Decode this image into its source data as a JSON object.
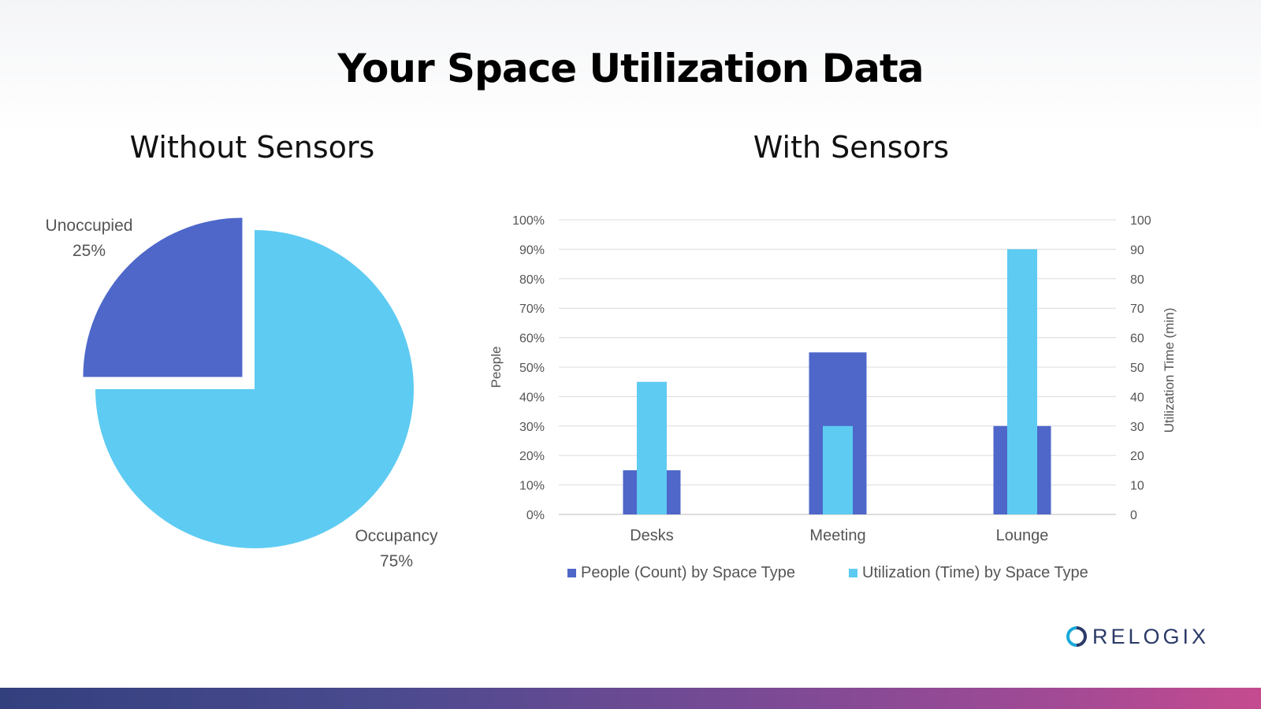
{
  "title": "Your Space Utilization Data",
  "left_title": "Without Sensors",
  "right_title": "With Sensors",
  "logo_text": "RELOGIX",
  "colors": {
    "occupancy": "#5ecbf2",
    "unoccupied": "#4e67c9",
    "people": "#4e67c9",
    "utilization": "#5ecbf2",
    "logo": "#2b3a67"
  },
  "chart_data": [
    {
      "type": "pie",
      "slices": [
        {
          "label": "Unoccupied",
          "value": 25,
          "value_label": "25%",
          "exploded": true
        },
        {
          "label": "Occupancy",
          "value": 75,
          "value_label": "75%",
          "exploded": false
        }
      ]
    },
    {
      "type": "bar",
      "categories": [
        "Desks",
        "Meeting",
        "Lounge"
      ],
      "y_left": {
        "label": "People",
        "ticks": [
          "0%",
          "10%",
          "20%",
          "30%",
          "40%",
          "50%",
          "60%",
          "70%",
          "80%",
          "90%",
          "100%"
        ],
        "ylim": [
          0,
          100
        ]
      },
      "y_right": {
        "label": "Utilization Time (min)",
        "ticks": [
          "0",
          "10",
          "20",
          "30",
          "40",
          "50",
          "60",
          "70",
          "80",
          "90",
          "100"
        ],
        "ylim": [
          0,
          100
        ]
      },
      "series": [
        {
          "name": "People (Count) by Space Type",
          "values": [
            15,
            55,
            30
          ],
          "axis": "left"
        },
        {
          "name": "Utilization (Time) by Space Type",
          "values": [
            45,
            30,
            90
          ],
          "axis": "right"
        }
      ],
      "grid": true,
      "legend": "bottom"
    }
  ]
}
